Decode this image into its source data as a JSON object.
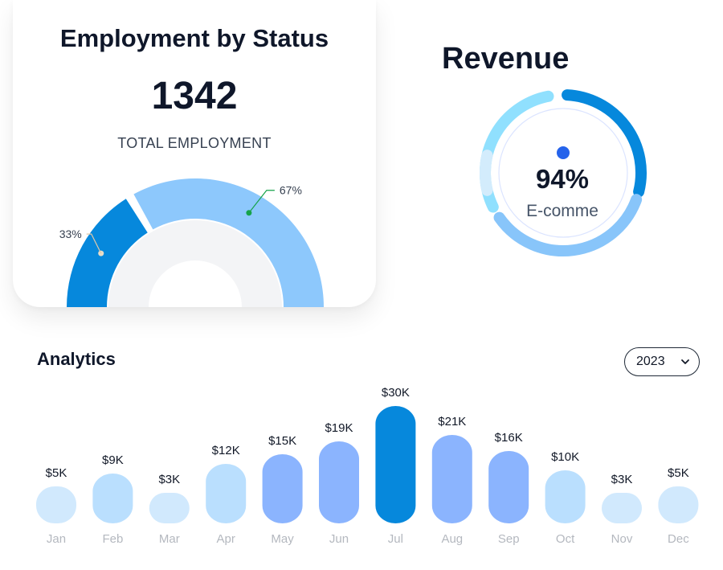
{
  "employment": {
    "title": "Employment by Status",
    "total": "1342",
    "total_label": "TOTAL EMPLOYMENT",
    "slices": [
      {
        "label": "33%",
        "value": 33,
        "color": "#0688dc"
      },
      {
        "label": "67%",
        "value": 67,
        "color": "#8dc8fc"
      }
    ]
  },
  "revenue": {
    "title": "Revenue",
    "value": "94%",
    "label": "E-comme",
    "colors": {
      "dark": "#0688dc",
      "light": "#90e0fe",
      "mid": "#88c5fa",
      "pale": "#d3ecfc",
      "dot": "#2563eb"
    }
  },
  "analytics": {
    "title": "Analytics",
    "year": "2023"
  },
  "chart_data": [
    {
      "type": "pie",
      "title": "Employment by Status",
      "categories": [
        "",
        ""
      ],
      "values": [
        33,
        67
      ],
      "labels": [
        "33%",
        "67%"
      ]
    },
    {
      "type": "bar",
      "title": "Analytics",
      "categories": [
        "Jan",
        "Feb",
        "Mar",
        "Apr",
        "May",
        "Jun",
        "Jul",
        "Aug",
        "Sep",
        "Oct",
        "Nov",
        "Dec"
      ],
      "values": [
        5,
        9,
        3,
        12,
        15,
        19,
        30,
        21,
        16,
        10,
        3,
        5
      ],
      "value_labels": [
        "$5K",
        "$9K",
        "$3K",
        "$12K",
        "$15K",
        "$19K",
        "$30K",
        "$21K",
        "$16K",
        "$10K",
        "$3K",
        "$5K"
      ],
      "unit": "K",
      "ylim": [
        0,
        30
      ],
      "grid": false,
      "colors": {
        "low": "#d1e9fd",
        "mid": "#badffe",
        "high": "#8bb4fe",
        "max": "#0688dc"
      }
    }
  ]
}
